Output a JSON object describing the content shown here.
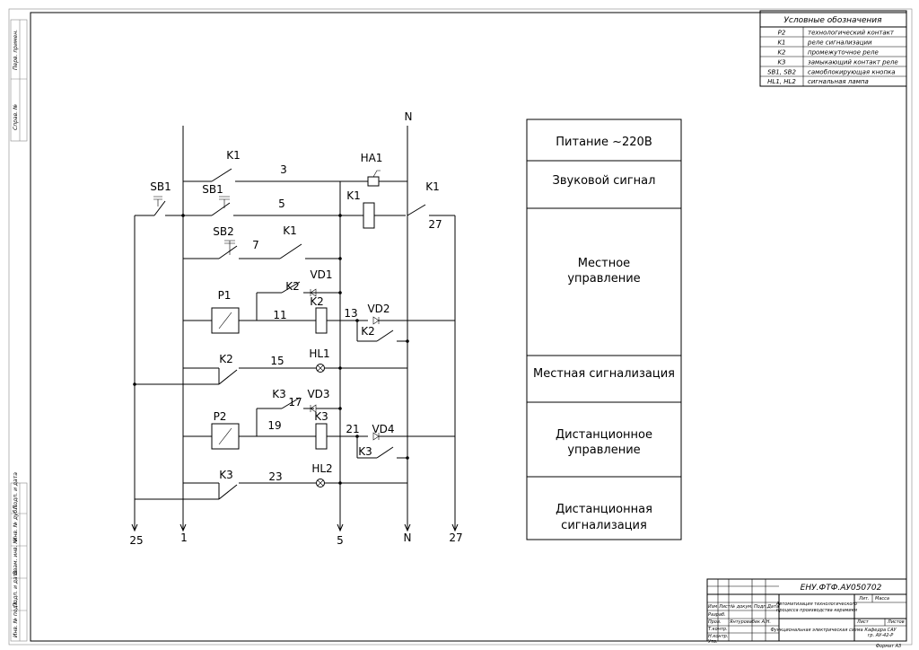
{
  "legend": {
    "title": "Условные обозначения",
    "rows": [
      {
        "code": "P2",
        "desc": "технологический контакт"
      },
      {
        "code": "K1",
        "desc": "реле сигнализации"
      },
      {
        "code": "K2",
        "desc": "промежуточное реле"
      },
      {
        "code": "K3",
        "desc": "замыкающий контакт реле"
      },
      {
        "code": "SB1, SB2",
        "desc": "самоблокирующая кнопка"
      },
      {
        "code": "HL1, HL2",
        "desc": "сигнальная лампа"
      }
    ]
  },
  "functions": [
    "Питание ~220В",
    "Звуковой сигнал",
    "Местное|управление",
    "Местная сигнализация",
    "Дистанционное|управление",
    "Дистанционная|сигнализация"
  ],
  "buses": {
    "n_top": "N",
    "bottom": [
      "25",
      "1",
      "5",
      "N",
      "27"
    ]
  },
  "elements": {
    "ha1": "HA1",
    "k1_a": "K1",
    "k1_coil": "K1",
    "k1_b": "K1",
    "k1_c": "K1",
    "sb1_a": "SB1",
    "sb1_b": "SB1",
    "sb2": "SB2",
    "p1": "P1",
    "k2_a": "K2",
    "k2_coil": "K2",
    "k2_b": "K2",
    "k2_c": "K2",
    "vd1": "VD1",
    "vd2": "VD2",
    "hl1": "HL1",
    "p2": "P2",
    "k3_a": "K3",
    "k3_coil": "K3",
    "k3_b": "K3",
    "k3_c": "K3",
    "vd3": "VD3",
    "vd4": "VD4",
    "hl2": "HL2"
  },
  "wires": {
    "w3": "3",
    "w5": "5",
    "w7": "7",
    "w27": "27",
    "w11": "11",
    "w13": "13",
    "w15": "15",
    "w17": "17",
    "w19": "19",
    "w21": "21",
    "w23": "23"
  },
  "side_labels": [
    "Перв. примен.",
    "Справ. №",
    "Подп. и дата",
    "Инв. № дубл.",
    "Взам. инв. №",
    "Подп. и дата",
    "Инв. № подл."
  ],
  "title_block": {
    "doc_code": "ЕНУ.ФТФ.АУ050702",
    "col_headers": [
      "Изм",
      "Лист",
      "№ докум.",
      "Подп.",
      "Дата"
    ],
    "roles": [
      "Разраб.",
      "Пров.",
      "Т.контр.",
      "Н.контр.",
      "Утв."
    ],
    "developer": "Янтуровабек А.Н.",
    "project": "Автоматизация технологического|процесса производства керамики",
    "sheet_name": "Функциональная электрическая схема",
    "org": "Кафедра САУ|гр. АУ-42-Р",
    "lit": "Лит.",
    "mass": "Масса",
    "sheet": "Лист",
    "sheets": "Листов",
    "format": "Формат А3"
  }
}
